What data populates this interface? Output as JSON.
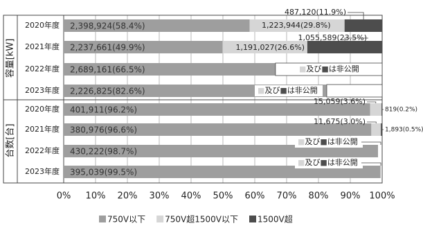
{
  "chart_data": {
    "type": "stacked_barh",
    "categories": [
      "2020年度",
      "2021年度",
      "2022年度",
      "2023年度",
      "2020年度",
      "2021年度",
      "2022年度",
      "2023年度"
    ],
    "groups": [
      {
        "label": "容量[kW]",
        "size": 4
      },
      {
        "label": "台数[台]",
        "size": 4
      }
    ],
    "series": [
      {
        "name": "750V以下",
        "color": "#9e9e9e",
        "values": [
          58.4,
          49.9,
          66.5,
          82.6,
          96.2,
          96.6,
          98.7,
          99.5
        ],
        "value_labels": [
          "2,398,924(58.4%)",
          "2,237,661(49.9%)",
          "2,689,161(66.5%)",
          "2,226,825(82.6%)",
          "401,911(96.2%)",
          "380,976(96.6%)",
          "430,222(98.7%)",
          "395,039(99.5%)"
        ]
      },
      {
        "name": "750V超1500V以下",
        "color": "#d6d6d6",
        "values": [
          29.8,
          26.6,
          null,
          null,
          3.6,
          3.0,
          null,
          null
        ],
        "value_labels": [
          "1,223,944(29.8%)",
          "1,191,027(26.6%)",
          null,
          null,
          "15,059(3.6%)",
          "11,675(3.0%)",
          null,
          null
        ]
      },
      {
        "name": "1500V超",
        "color": "#4d4d4d",
        "values": [
          11.9,
          23.5,
          null,
          null,
          0.2,
          0.5,
          null,
          null
        ],
        "value_labels": [
          "487,120(11.9%)",
          "1,055,589(23.5%)",
          null,
          null,
          "819(0.2%)",
          "1,893(0.5%)",
          null,
          null
        ]
      }
    ],
    "non_public_note": [
      "■",
      "及び",
      "■",
      "は非公開"
    ],
    "xlim": [
      0,
      100
    ],
    "xticks": [
      {
        "value": 0,
        "label": "0%"
      },
      {
        "value": 10,
        "label": "10%"
      },
      {
        "value": 20,
        "label": "20%"
      },
      {
        "value": 30,
        "label": "30%"
      },
      {
        "value": 40,
        "label": "40%"
      },
      {
        "value": 50,
        "label": "50%"
      },
      {
        "value": 60,
        "label": "60%"
      },
      {
        "value": 70,
        "label": "70%"
      },
      {
        "value": 80,
        "label": "80%"
      },
      {
        "value": 90,
        "label": "90%"
      },
      {
        "value": 100,
        "label": "100%"
      }
    ],
    "legend": "bottom"
  }
}
